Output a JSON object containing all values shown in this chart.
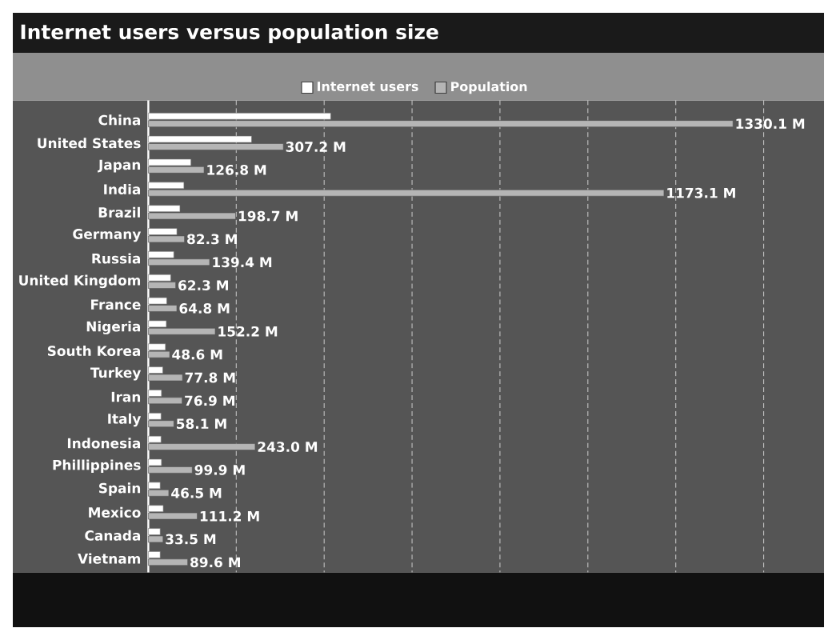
{
  "chart_data": {
    "type": "bar",
    "orientation": "horizontal",
    "title": "Internet users versus population size",
    "categories": [
      "China",
      "United States",
      "Japan",
      "India",
      "Brazil",
      "Germany",
      "Russia",
      "United Kingdom",
      "France",
      "Nigeria",
      "South Korea",
      "Turkey",
      "Iran",
      "Italy",
      "Indonesia",
      "Phillippines",
      "Spain",
      "Mexico",
      "Canada",
      "Vietnam"
    ],
    "series": [
      {
        "name": "Internet users",
        "color": "#ffffff",
        "values": [
          415,
          235,
          97,
          81,
          72,
          65,
          58,
          51,
          42,
          41,
          39,
          33,
          30,
          29,
          29,
          30,
          27,
          34,
          27,
          27
        ]
      },
      {
        "name": "Population",
        "color": "#b5b5b5",
        "values": [
          1330.1,
          307.2,
          126.8,
          1173.1,
          198.7,
          82.3,
          139.4,
          62.3,
          64.8,
          152.2,
          48.6,
          77.8,
          76.9,
          58.1,
          243.0,
          99.9,
          46.5,
          111.2,
          33.5,
          89.6
        ],
        "value_labels": [
          "1330.1 M",
          "307.2 M",
          "126.8 M",
          "1173.1 M",
          "198.7 M",
          "82.3 M",
          "139.4 M",
          "62.3 M",
          "64.8 M",
          "152.2 M",
          "48.6 M",
          "77.8 M",
          "76.9 M",
          "58.1 M",
          "243.0 M",
          "99.9 M",
          "46.5 M",
          "111.2 M",
          "33.5 M",
          "89.6 M"
        ]
      }
    ],
    "xlim": [
      0,
      1400
    ],
    "xticks": [
      {
        "value": 200,
        "label": null
      },
      {
        "value": 400,
        "label": null
      },
      {
        "value": 600,
        "label": null
      },
      {
        "value": 800,
        "label": null
      },
      {
        "value": 1000,
        "label": null
      },
      {
        "value": 1200,
        "label": null
      },
      {
        "value": 1400,
        "label": null
      }
    ],
    "grid": "x",
    "legend": "top",
    "tick_labels": "y"
  }
}
